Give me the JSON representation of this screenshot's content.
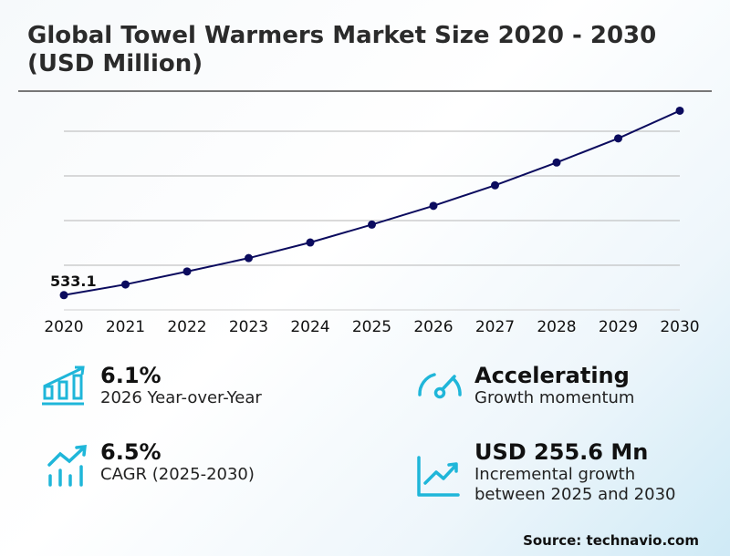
{
  "title_line1": "Global Towel Warmers Market Size 2020 - 2030",
  "title_line2": "(USD Million)",
  "chart_data": {
    "type": "line",
    "title": "Global Towel Warmers Market Size 2020 - 2030 (USD Million)",
    "x": [
      "2020",
      "2021",
      "2022",
      "2023",
      "2024",
      "2025",
      "2026",
      "2027",
      "2028",
      "2029",
      "2030"
    ],
    "series": [
      {
        "name": "Market Size",
        "values": [
          533.1,
          557,
          586,
          616,
          651,
          691,
          733,
          779,
          830,
          884,
          946
        ]
      }
    ],
    "data_labels": [
      {
        "x": "2020",
        "text": "533.1"
      }
    ],
    "ylim": [
      500,
      950
    ],
    "gridlines": [
      600,
      700,
      800,
      900
    ],
    "grid": true,
    "line_color": "#0b0b5e"
  },
  "kpis": [
    {
      "value": "6.1%",
      "label": "2026 Year-over-Year",
      "icon": "bar-chart-growth-icon"
    },
    {
      "value": "Accelerating",
      "label": "Growth momentum",
      "icon": "speedometer-icon"
    },
    {
      "value": "6.5%",
      "label": "CAGR (2025-2030)",
      "icon": "trend-up-bars-icon"
    },
    {
      "value": "USD 255.6 Mn",
      "label_line1": "Incremental growth",
      "label_line2": "between 2025 and 2030",
      "icon": "line-chart-up-icon"
    }
  ],
  "accent_color": "#1fb6d9",
  "source": "Source: technavio.com"
}
